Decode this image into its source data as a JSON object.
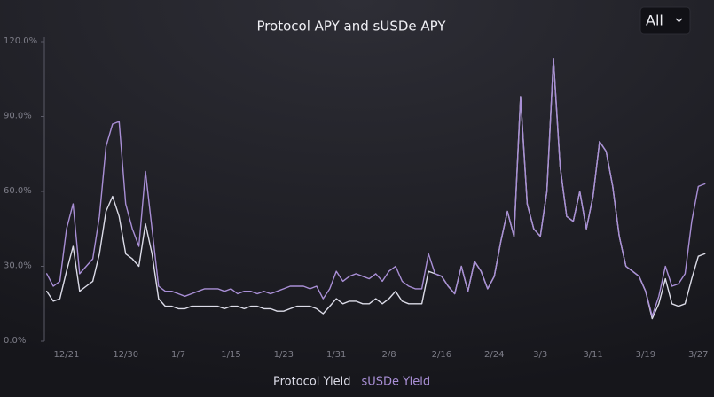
{
  "chart_data": {
    "type": "line",
    "title": "Protocol APY and sUSDe APY",
    "selector": "All",
    "categories": [
      null,
      null,
      null,
      "12/21",
      null,
      null,
      null,
      null,
      null,
      null,
      null,
      null,
      "12/30",
      null,
      null,
      null,
      null,
      null,
      null,
      null,
      "1/7",
      null,
      null,
      null,
      null,
      null,
      null,
      null,
      "1/15",
      null,
      null,
      null,
      null,
      null,
      null,
      null,
      "1/23",
      null,
      null,
      null,
      null,
      null,
      null,
      null,
      "1/31",
      null,
      null,
      null,
      null,
      null,
      null,
      null,
      "2/8",
      null,
      null,
      null,
      null,
      null,
      null,
      null,
      "2/16",
      null,
      null,
      null,
      null,
      null,
      null,
      null,
      "2/24",
      null,
      null,
      null,
      null,
      null,
      null,
      "3/3",
      null,
      null,
      null,
      null,
      null,
      null,
      null,
      "3/11",
      null,
      null,
      null,
      null,
      null,
      null,
      null,
      "3/19",
      null,
      null,
      null,
      null,
      null,
      null,
      null,
      "3/27",
      null
    ],
    "series": [
      {
        "name": "Protocol Yield",
        "color": "#dcdce8",
        "values": [
          20,
          16,
          17,
          28,
          38,
          20,
          22,
          24,
          35,
          52,
          58,
          50,
          35,
          33,
          30,
          47,
          35,
          17,
          14,
          14,
          13,
          13,
          14,
          14,
          14,
          14,
          14,
          13,
          14,
          14,
          13,
          14,
          14,
          13,
          13,
          12,
          12,
          13,
          14,
          14,
          14,
          13,
          11,
          14,
          17,
          15,
          16,
          16,
          15,
          15,
          17,
          15,
          17,
          20,
          16,
          15,
          15,
          15,
          28,
          27,
          26,
          22,
          19,
          30,
          20,
          32,
          28,
          21,
          26,
          40,
          52,
          42,
          98,
          55,
          45,
          42,
          60,
          113,
          70,
          50,
          48,
          60,
          45,
          58,
          80,
          76,
          62,
          42,
          30,
          28,
          26,
          20,
          9,
          15,
          25,
          15,
          14,
          15,
          25,
          34,
          35
        ]
      },
      {
        "name": "sUSDe Yield",
        "color": "#a98fd6",
        "values": [
          27,
          22,
          24,
          45,
          55,
          27,
          30,
          33,
          50,
          78,
          87,
          88,
          55,
          45,
          38,
          68,
          45,
          22,
          20,
          20,
          19,
          18,
          19,
          20,
          21,
          21,
          21,
          20,
          21,
          19,
          20,
          20,
          19,
          20,
          19,
          20,
          21,
          22,
          22,
          22,
          21,
          22,
          17,
          21,
          28,
          24,
          26,
          27,
          26,
          25,
          27,
          24,
          28,
          30,
          24,
          22,
          21,
          21,
          35,
          27,
          26,
          22,
          19,
          30,
          20,
          32,
          28,
          21,
          26,
          40,
          52,
          42,
          98,
          55,
          45,
          42,
          60,
          113,
          70,
          50,
          48,
          60,
          45,
          58,
          80,
          76,
          62,
          42,
          30,
          28,
          26,
          20,
          10,
          18,
          30,
          22,
          23,
          27,
          48,
          62,
          63
        ]
      }
    ],
    "ylim": [
      0,
      120
    ],
    "yticks": [
      {
        "value": 0,
        "label": "0.0%"
      },
      {
        "value": 30,
        "label": "30.0%"
      },
      {
        "value": 60,
        "label": "60.0%"
      },
      {
        "value": 90,
        "label": "90.0%"
      },
      {
        "value": 120,
        "label": "120.0%"
      }
    ]
  }
}
